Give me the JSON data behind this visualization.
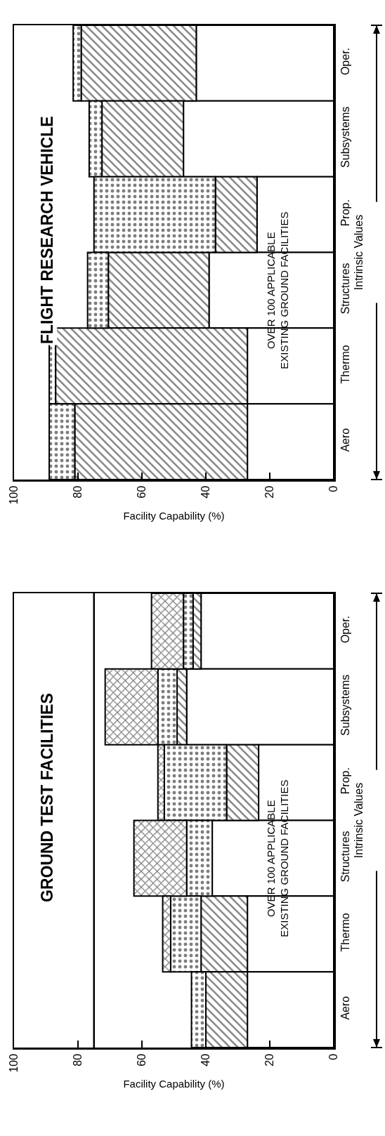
{
  "chart_data": [
    {
      "type": "bar",
      "orientation": "horizontal",
      "title": "GROUND TEST FACILITIES",
      "xlabel": "Facility Capability (%)",
      "ylabel": "Intrinsic Values",
      "annotations": [
        "OVER 100 APPLICABLE\nEXISTING GROUND FACILITIES"
      ],
      "categories": [
        "Oper.",
        "Subsystems",
        "Prop.",
        "Structures",
        "Thermo",
        "Aero"
      ],
      "stacked": true,
      "series": [
        {
          "color": "#ffffff",
          "values": [
            41.5,
            46,
            23.5,
            38,
            27,
            27
          ]
        },
        {
          "color": "#000000",
          "values": [
            2.5,
            3,
            10,
            null,
            14.5,
            13
          ]
        },
        {
          "color": "#000000",
          "values": [
            3,
            6,
            19.5,
            8,
            9.5,
            4.5
          ]
        },
        {
          "color": "#000000",
          "values": [
            10,
            16.5,
            2,
            16.5,
            2.5,
            null
          ]
        }
      ],
      "xlim": [
        100,
        0
      ],
      "xticks": [
        0,
        20,
        40,
        60,
        80,
        100
      ],
      "ref_lines": [
        {
          "axis": "x",
          "value": 75,
          "color": "#000000"
        }
      ]
    },
    {
      "type": "bar",
      "orientation": "horizontal",
      "title": "FLIGHT RESEARCH VEHICLE",
      "xlabel": "Facility Capability (%)",
      "ylabel": "Intrinsic Values",
      "annotations": [
        "OVER 100 APPLICABLE\nEXISTING GROUND FACILITIES"
      ],
      "categories": [
        "Oper.",
        "Subsystems",
        "Prop.",
        "Structures",
        "Thermo",
        "Aero"
      ],
      "stacked": true,
      "series": [
        {
          "color": "#ffffff",
          "values": [
            43,
            47,
            24,
            39,
            27,
            27
          ]
        },
        {
          "color": "#000000",
          "values": [
            36,
            25.5,
            13,
            31.5,
            60,
            54
          ]
        },
        {
          "color": "#000000",
          "values": [
            2.5,
            4,
            38,
            6.5,
            2,
            8
          ]
        }
      ],
      "xlim": [
        100,
        0
      ],
      "xticks": [
        0,
        20,
        40,
        60,
        80,
        100
      ]
    }
  ]
}
